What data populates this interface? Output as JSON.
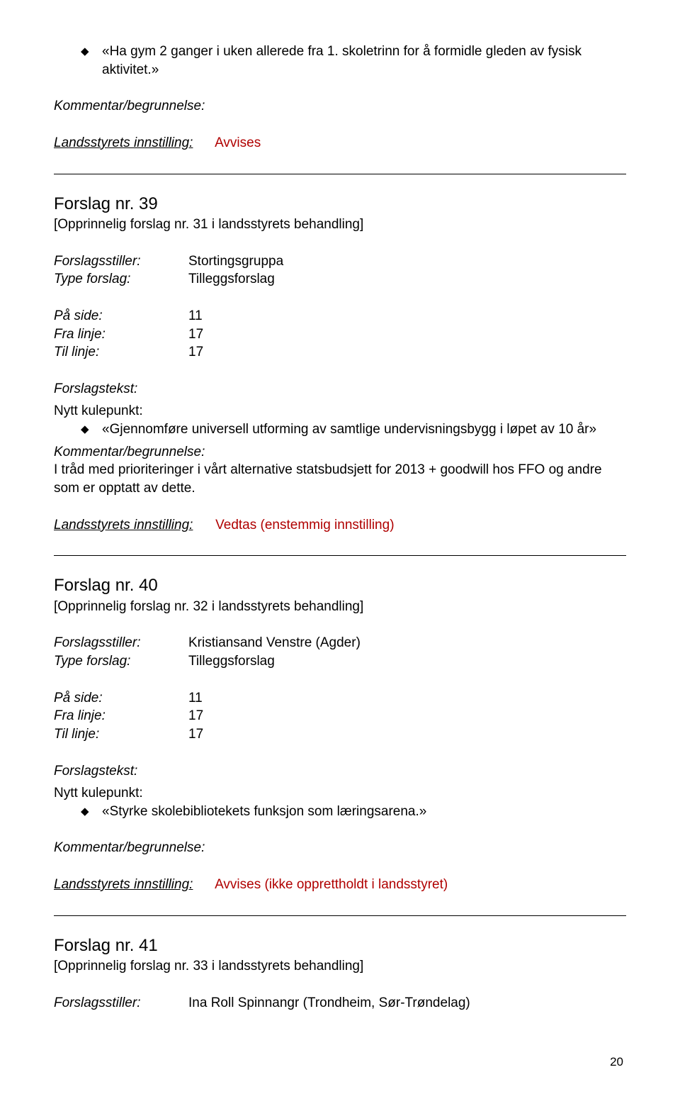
{
  "topBullet": "«Ha gym 2 ganger i uken allerede fra 1. skoletrinn for å formidle gleden av fysisk aktivitet.»",
  "labels": {
    "kommentar": "Kommentar/begrunnelse:",
    "innstilling": "Landsstyrets innstilling:",
    "forslagsstiller": "Forslagsstiller:",
    "typeForslag": "Type forslag:",
    "paaSide": "På side:",
    "fraLinje": "Fra linje:",
    "tilLinje": "Til linje:",
    "forslagstekst": "Forslagstekst:",
    "nyttKulepunkt": "Nytt kulepunkt:"
  },
  "s38": {
    "innstilling": "Avvises"
  },
  "s39": {
    "title": "Forslag nr. 39",
    "subtitle": "[Opprinnelig forslag nr. 31 i landsstyrets behandling]",
    "stiller": "Stortingsgruppa",
    "type": "Tilleggsforslag",
    "side": "11",
    "fra": "17",
    "til": "17",
    "bullet": "«Gjennomføre universell utforming av samtlige undervisningsbygg i løpet av 10 år»",
    "kommentarText": "I tråd med prioriteringer i vårt alternative statsbudsjett for 2013 + goodwill hos FFO og andre som er opptatt av dette.",
    "innstilling": "Vedtas (enstemmig innstilling)"
  },
  "s40": {
    "title": "Forslag nr. 40",
    "subtitle": "[Opprinnelig forslag nr. 32 i landsstyrets behandling]",
    "stiller": "Kristiansand Venstre (Agder)",
    "type": "Tilleggsforslag",
    "side": "11",
    "fra": "17",
    "til": "17",
    "bullet": "«Styrke skolebibliotekets funksjon som læringsarena.»",
    "innstilling": "Avvises (ikke opprettholdt i landsstyret)"
  },
  "s41": {
    "title": "Forslag nr. 41",
    "subtitle": "[Opprinnelig forslag nr. 33 i landsstyrets behandling]",
    "stiller": "Ina Roll Spinnangr (Trondheim, Sør-Trøndelag)"
  },
  "pageNumber": "20"
}
